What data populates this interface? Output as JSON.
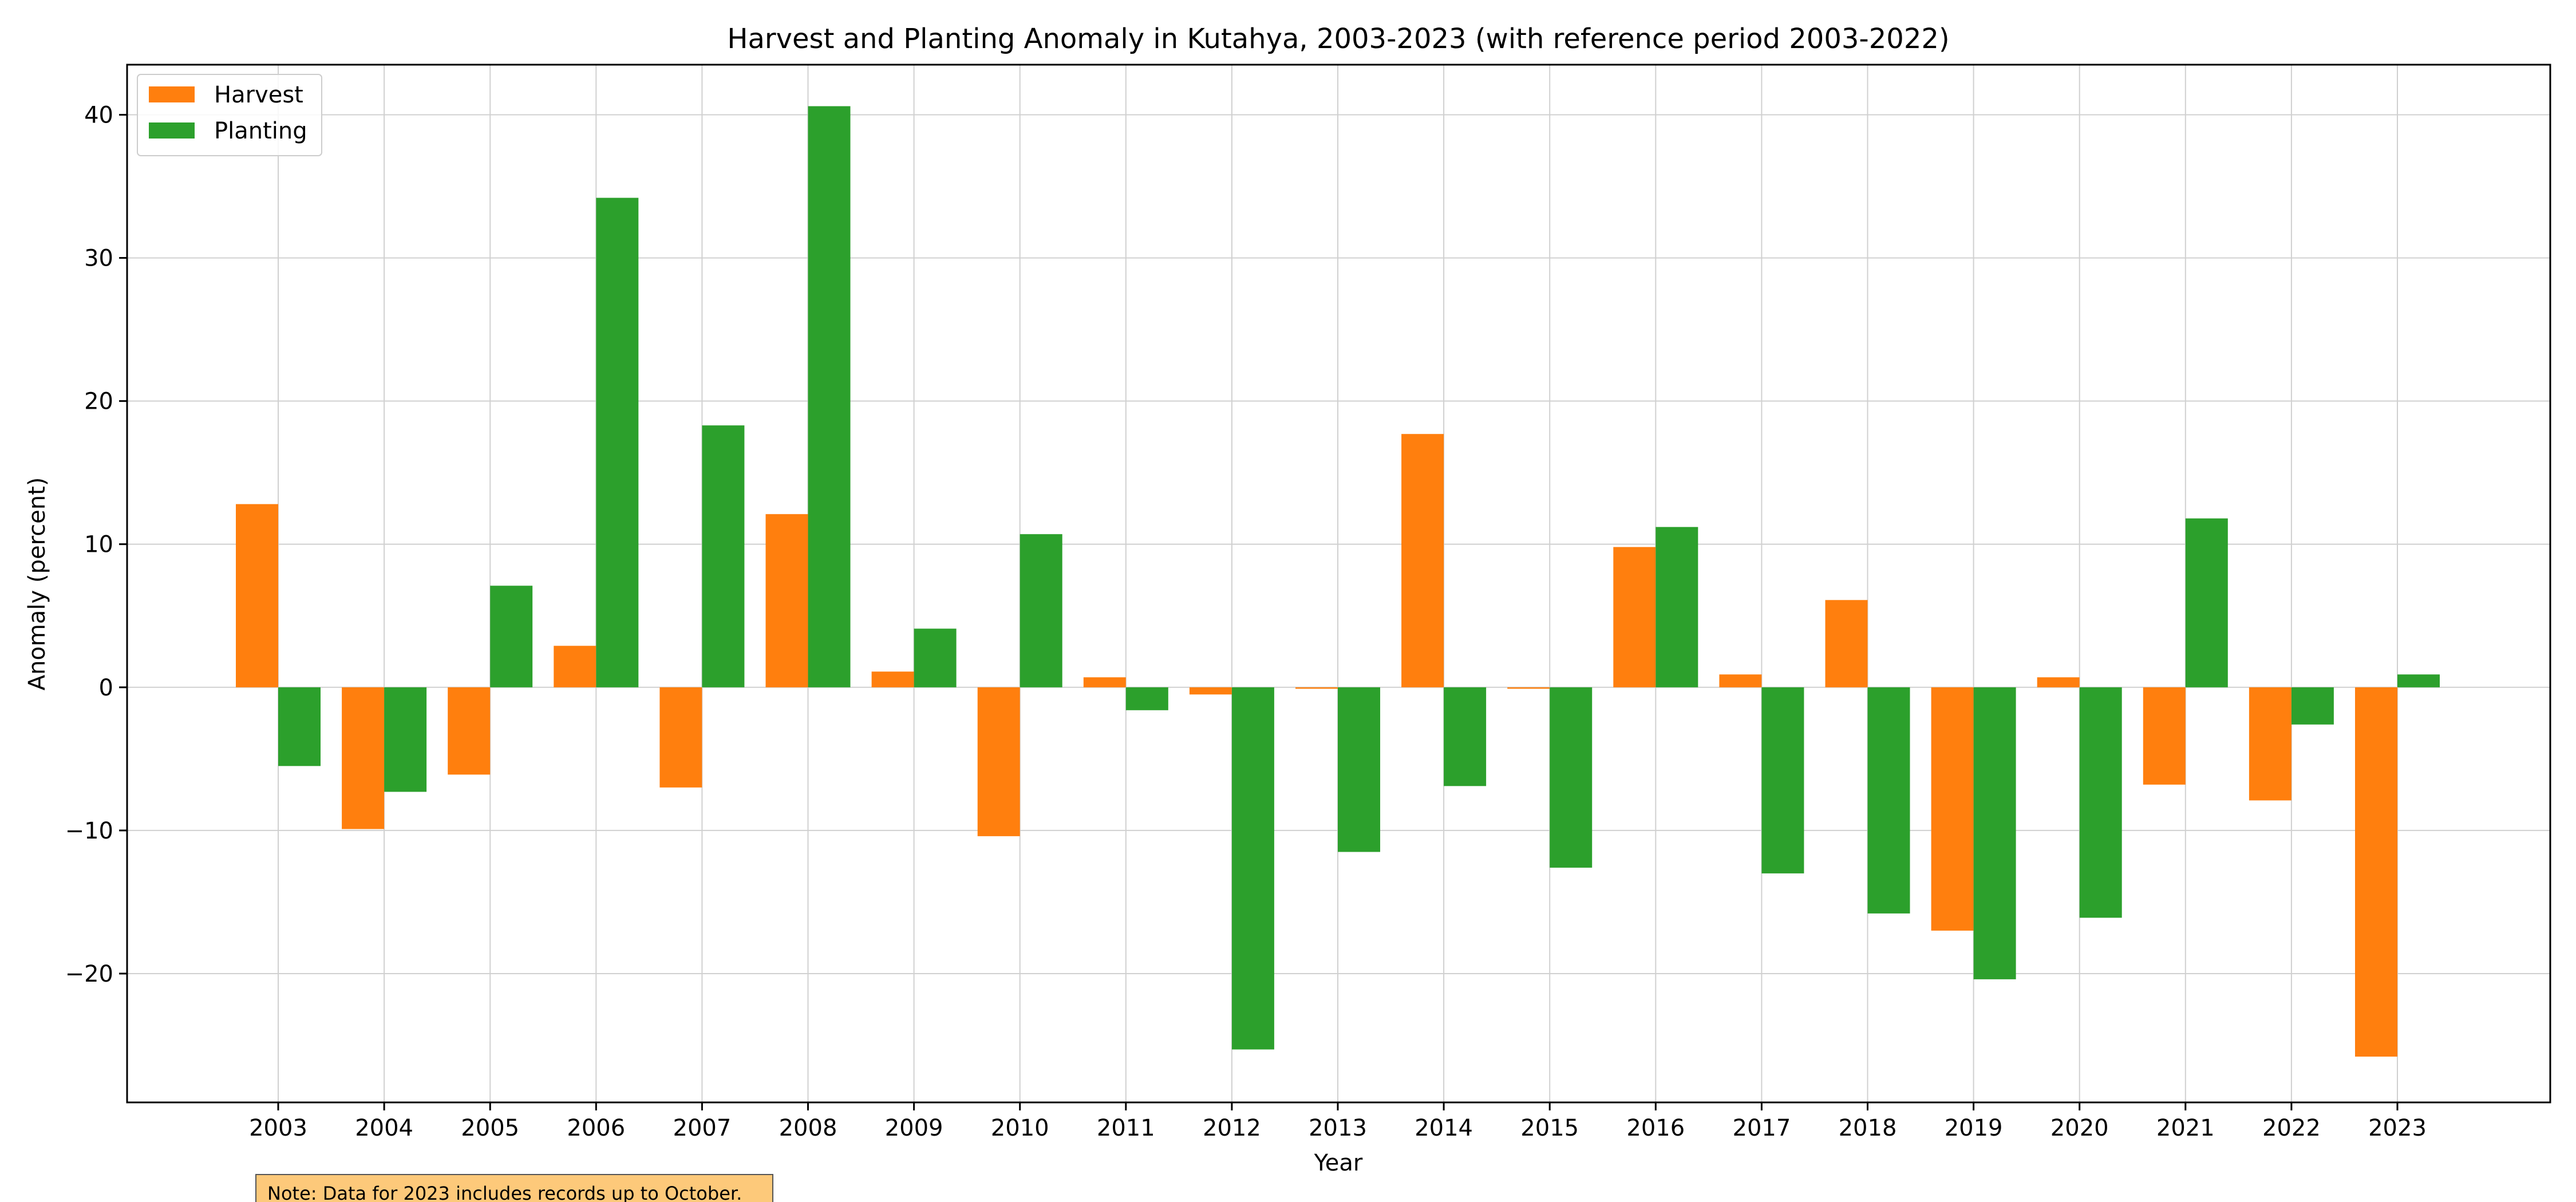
{
  "chart_data": {
    "type": "bar",
    "title": "Harvest and Planting Anomaly in Kutahya, 2003-2023 (with reference period 2003-2022)",
    "xlabel": "Year",
    "ylabel": "Anomaly (percent)",
    "categories": [
      "2003",
      "2004",
      "2005",
      "2006",
      "2007",
      "2008",
      "2009",
      "2010",
      "2011",
      "2012",
      "2013",
      "2014",
      "2015",
      "2016",
      "2017",
      "2018",
      "2019",
      "2020",
      "2021",
      "2022",
      "2023"
    ],
    "series": [
      {
        "name": "Harvest",
        "color": "#ff7f0e",
        "values": [
          12.8,
          -9.9,
          -6.1,
          2.9,
          -7.0,
          12.1,
          1.1,
          -10.4,
          0.7,
          -0.5,
          -0.1,
          17.7,
          -0.1,
          9.8,
          0.9,
          6.1,
          -17.0,
          0.7,
          -6.8,
          -7.9,
          -25.8
        ]
      },
      {
        "name": "Planting",
        "color": "#2ca02c",
        "values": [
          -5.5,
          -7.3,
          7.1,
          34.2,
          18.3,
          40.6,
          4.1,
          10.7,
          -1.6,
          -25.3,
          -11.5,
          -6.9,
          -12.6,
          11.2,
          -13.0,
          -15.8,
          -20.4,
          -16.1,
          11.8,
          -2.6,
          0.9
        ]
      }
    ],
    "yticks": [
      "−20",
      "−10",
      "0",
      "10",
      "20",
      "30",
      "40"
    ],
    "ylim": [
      -29,
      43.5
    ],
    "grid": true,
    "legend_position": "top-left",
    "note": "Note: Data for 2023 includes records up to October."
  }
}
